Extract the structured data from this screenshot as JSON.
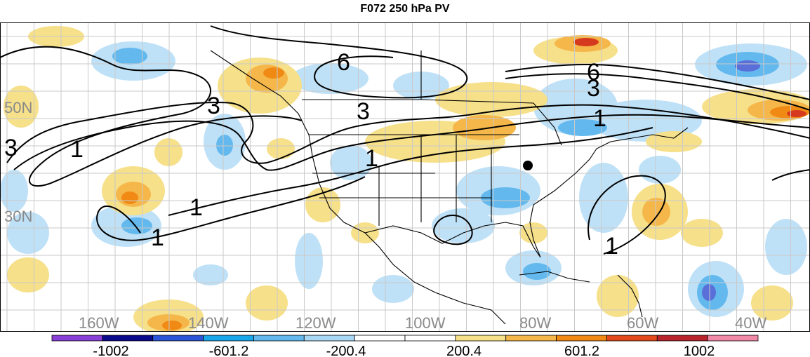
{
  "title": "F072 250 hPa PV",
  "latitude_labels": [
    "50N",
    "30N"
  ],
  "longitude_labels": [
    "160W",
    "140W",
    "120W",
    "100W",
    "80W",
    "60W",
    "40W"
  ],
  "contour_labels": [
    "6",
    "6",
    "3",
    "3",
    "3",
    "3",
    "1",
    "1",
    "1",
    "1",
    "1",
    "1"
  ],
  "colorbar": {
    "labels": [
      "-1002",
      "-601.2",
      "-200.4",
      "200.4",
      "601.2",
      "1002"
    ],
    "colors": [
      "#8a3fd8",
      "#0a0a8c",
      "#2b55d6",
      "#1aa7ea",
      "#63b9ee",
      "#a9d8f5",
      "#ffffff",
      "#ffffff",
      "#f6e08a",
      "#f5b74a",
      "#f08a15",
      "#e24a1c",
      "#b8252c",
      "#f08aa8"
    ]
  },
  "colors": {
    "neg_strong": "#63b9ee",
    "neg_weak": "#bfe1f7",
    "pos_weak": "#f6e08a",
    "pos_mid": "#f5b74a",
    "pos_strong": "#f08a15",
    "deep_blue": "#5a6fd8",
    "red": "#d63a1e"
  }
}
